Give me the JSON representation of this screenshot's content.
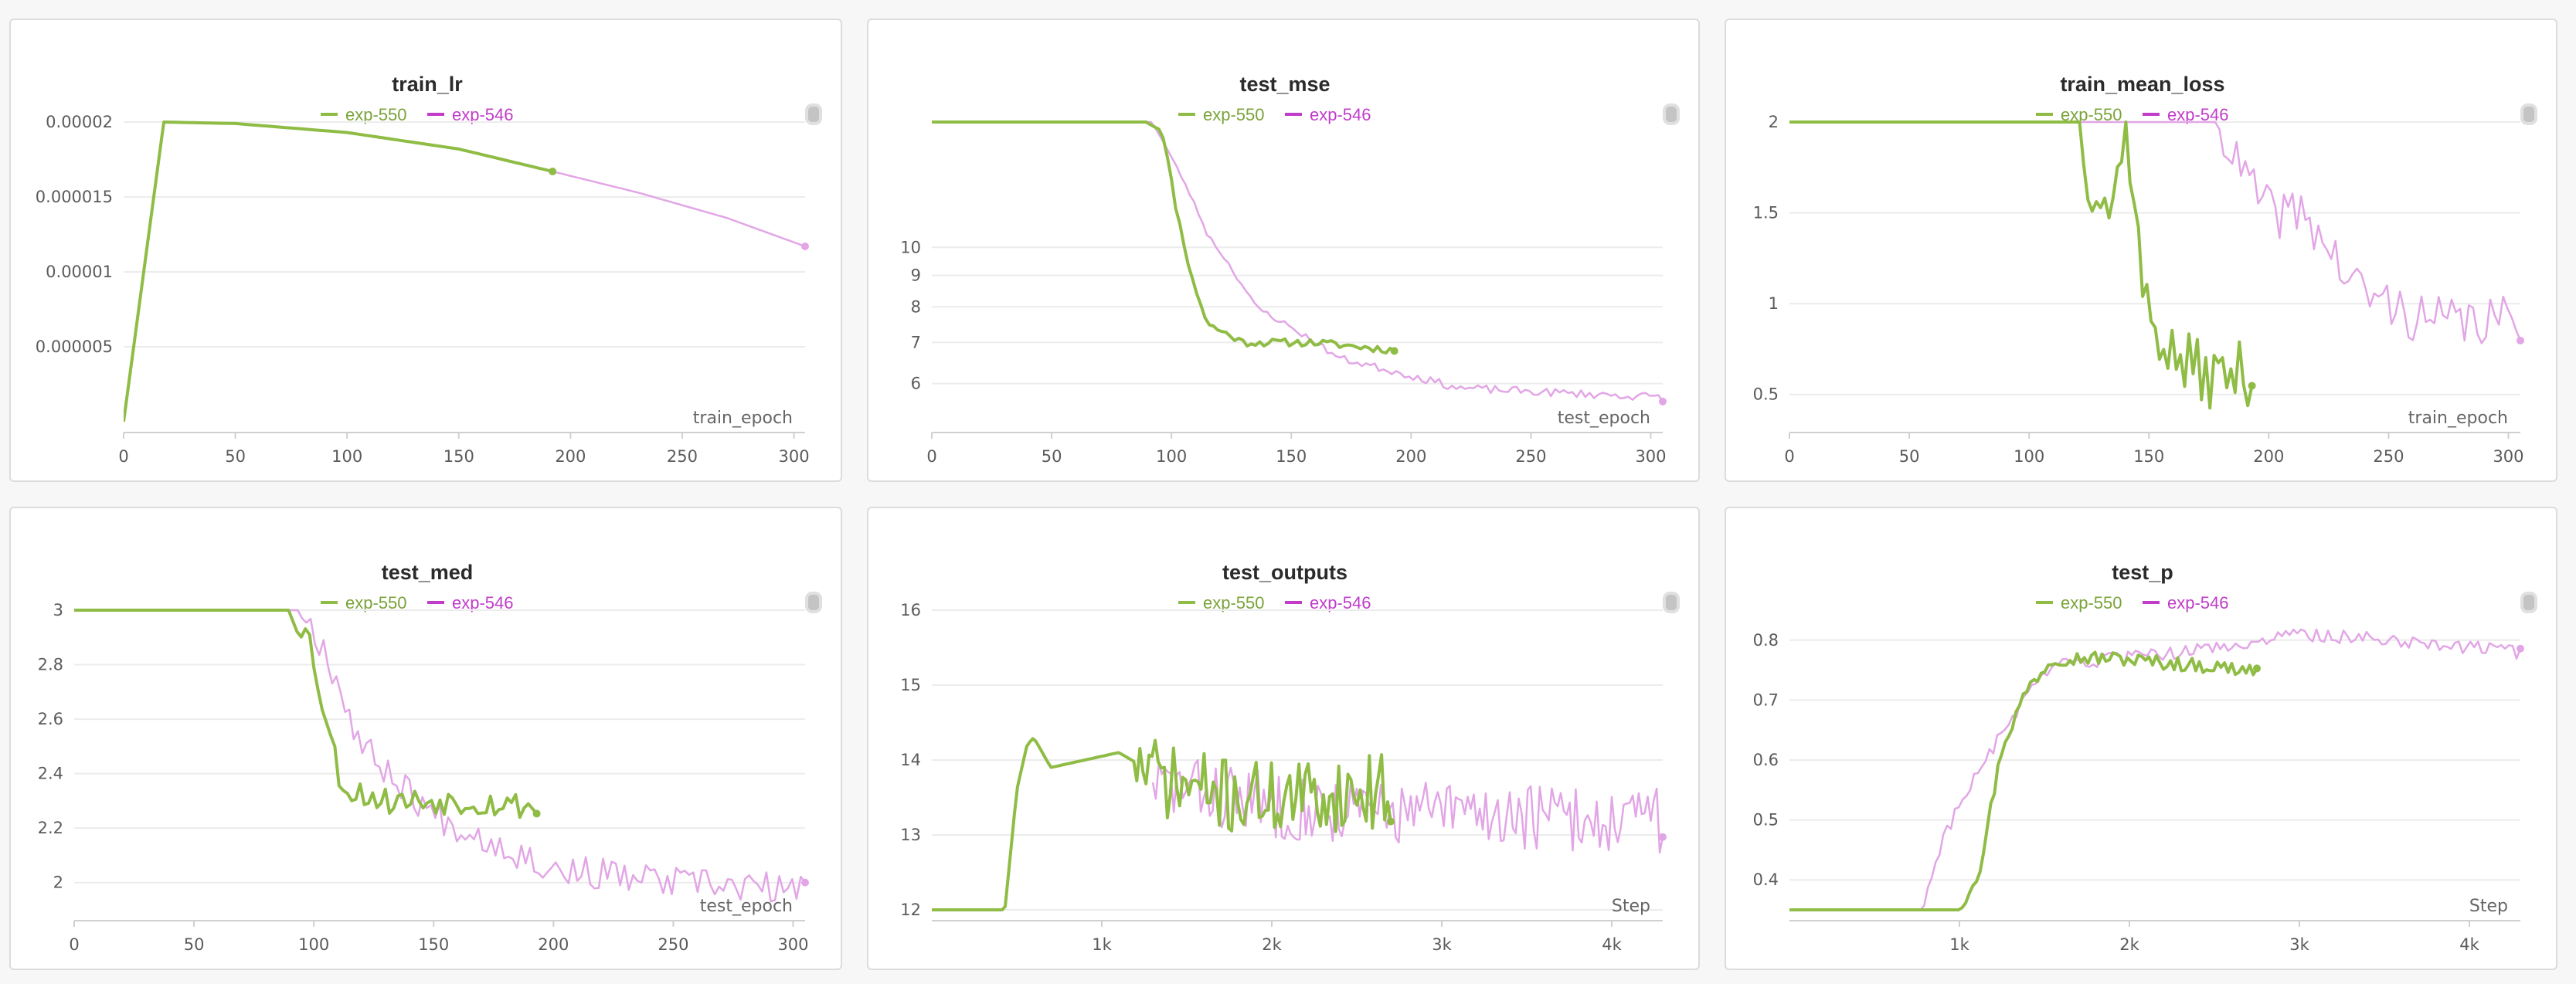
{
  "colors": {
    "exp_550": "#8fbc45",
    "exp_546": "#e2a6e6",
    "exp_546_text": "#c03cc9"
  },
  "legend": {
    "series_a": "exp-550",
    "series_b": "exp-546"
  },
  "chart_data": [
    {
      "title": "train_lr",
      "type": "line",
      "xlabel": "train_epoch",
      "ylabel": "",
      "xlim": [
        0,
        305
      ],
      "ylim": [
        0,
        2e-05
      ],
      "log": false,
      "xticks": [
        0,
        50,
        100,
        150,
        200,
        250,
        300
      ],
      "xtick_labels": [
        "0",
        "50",
        "100",
        "150",
        "200",
        "250",
        "300"
      ],
      "yticks": [
        5e-06,
        1e-05,
        1.5e-05,
        2e-05
      ],
      "ytick_labels": [
        "0.000005",
        "0.00001",
        "0.000015",
        "0.00002"
      ],
      "series": [
        {
          "name": "exp-550",
          "kind": "smooth",
          "points": [
            [
              0,
              0
            ],
            [
              18,
              2e-05
            ],
            [
              50,
              1.99e-05
            ],
            [
              100,
              1.93e-05
            ],
            [
              150,
              1.82e-05
            ],
            [
              192,
              1.67e-05
            ]
          ],
          "end_marker": true
        },
        {
          "name": "exp-546",
          "kind": "smooth",
          "points": [
            [
              192,
              1.67e-05
            ],
            [
              230,
              1.53e-05
            ],
            [
              270,
              1.36e-05
            ],
            [
              305,
              1.17e-05
            ]
          ],
          "end_marker": true
        }
      ]
    },
    {
      "title": "test_mse",
      "type": "line",
      "xlabel": "test_epoch",
      "ylabel": "",
      "xlim": [
        0,
        305
      ],
      "ylim": [
        5.2,
        16
      ],
      "log": true,
      "xticks": [
        0,
        50,
        100,
        150,
        200,
        250,
        300
      ],
      "xtick_labels": [
        "0",
        "50",
        "100",
        "150",
        "200",
        "250",
        "300"
      ],
      "yticks": [
        6,
        7,
        8,
        9,
        10
      ],
      "ytick_labels": [
        "6",
        "7",
        "8",
        "9",
        "10"
      ],
      "series": [
        {
          "name": "exp-550",
          "kind": "noisy",
          "seed": 11,
          "x_start": 0,
          "x_end": 193,
          "count": 110,
          "anchors": [
            [
              0,
              16
            ],
            [
              90,
              16
            ],
            [
              96,
              15.5
            ],
            [
              102,
              11.5
            ],
            [
              108,
              9.0
            ],
            [
              115,
              7.5
            ],
            [
              130,
              7.0
            ],
            [
              160,
              7.0
            ],
            [
              193,
              6.8
            ]
          ],
          "noise": 0.1,
          "end_marker": true
        },
        {
          "name": "exp-546",
          "kind": "noisy",
          "seed": 23,
          "x_start": 0,
          "x_end": 305,
          "count": 170,
          "anchors": [
            [
              0,
              16
            ],
            [
              92,
              16
            ],
            [
              100,
              14.0
            ],
            [
              115,
              10.5
            ],
            [
              135,
              8.0
            ],
            [
              170,
              6.6
            ],
            [
              220,
              5.9
            ],
            [
              260,
              5.8
            ],
            [
              305,
              5.7
            ]
          ],
          "noise": 0.09,
          "end_marker": true
        }
      ]
    },
    {
      "title": "train_mean_loss",
      "type": "line",
      "xlabel": "train_epoch",
      "ylabel": "",
      "xlim": [
        0,
        305
      ],
      "ylim": [
        0.35,
        2
      ],
      "log": false,
      "xticks": [
        0,
        50,
        100,
        150,
        200,
        250,
        300
      ],
      "xtick_labels": [
        "0",
        "50",
        "100",
        "150",
        "200",
        "250",
        "300"
      ],
      "yticks": [
        0.5,
        1,
        1.5,
        2
      ],
      "ytick_labels": [
        "0.5",
        "1",
        "1.5",
        "2"
      ],
      "series": [
        {
          "name": "exp-550",
          "kind": "noisy",
          "seed": 37,
          "x_start": 0,
          "x_end": 193,
          "count": 110,
          "anchors": [
            [
              0,
              2.3
            ],
            [
              118,
              2.3
            ],
            [
              125,
              1.7
            ],
            [
              135,
              1.5
            ],
            [
              140,
              2.1
            ],
            [
              148,
              1.0
            ],
            [
              160,
              0.7
            ],
            [
              175,
              0.6
            ],
            [
              193,
              0.62
            ]
          ],
          "noise": 0.18,
          "end_marker": true
        },
        {
          "name": "exp-546",
          "kind": "noisy",
          "seed": 41,
          "x_start": 0,
          "x_end": 305,
          "count": 170,
          "anchors": [
            [
              0,
              2.4
            ],
            [
              170,
              2.4
            ],
            [
              185,
              1.8
            ],
            [
              200,
              1.5
            ],
            [
              215,
              1.5
            ],
            [
              235,
              1.1
            ],
            [
              265,
              0.9
            ],
            [
              305,
              0.9
            ]
          ],
          "noise": 0.14,
          "end_marker": true
        }
      ]
    },
    {
      "title": "test_med",
      "type": "line",
      "xlabel": "test_epoch",
      "ylabel": "",
      "xlim": [
        0,
        305
      ],
      "ylim": [
        1.9,
        3
      ],
      "log": false,
      "xticks": [
        0,
        50,
        100,
        150,
        200,
        250,
        300
      ],
      "xtick_labels": [
        "0",
        "50",
        "100",
        "150",
        "200",
        "250",
        "300"
      ],
      "yticks": [
        2,
        2.2,
        2.4,
        2.6,
        2.8,
        3
      ],
      "ytick_labels": [
        "2",
        "2.2",
        "2.4",
        "2.6",
        "2.8",
        "3"
      ],
      "series": [
        {
          "name": "exp-550",
          "kind": "noisy",
          "seed": 53,
          "x_start": 0,
          "x_end": 193,
          "count": 110,
          "anchors": [
            [
              0,
              3
            ],
            [
              90,
              3
            ],
            [
              98,
              2.9
            ],
            [
              105,
              2.6
            ],
            [
              112,
              2.35
            ],
            [
              130,
              2.3
            ],
            [
              160,
              2.3
            ],
            [
              193,
              2.28
            ]
          ],
          "noise": 0.05,
          "end_marker": true
        },
        {
          "name": "exp-546",
          "kind": "noisy",
          "seed": 67,
          "x_start": 0,
          "x_end": 305,
          "count": 170,
          "anchors": [
            [
              0,
              3
            ],
            [
              95,
              3
            ],
            [
              105,
              2.85
            ],
            [
              120,
              2.5
            ],
            [
              150,
              2.25
            ],
            [
              200,
              2.05
            ],
            [
              250,
              2.0
            ],
            [
              305,
              1.97
            ]
          ],
          "noise": 0.06,
          "end_marker": true
        }
      ]
    },
    {
      "title": "test_outputs",
      "type": "line",
      "xlabel": "Step",
      "ylabel": "",
      "xlim": [
        0,
        4300
      ],
      "ylim": [
        12,
        16
      ],
      "log": false,
      "xticks": [
        1000,
        2000,
        3000,
        4000
      ],
      "xtick_labels": [
        "1k",
        "2k",
        "3k",
        "4k"
      ],
      "yticks": [
        12,
        13,
        14,
        15,
        16
      ],
      "ytick_labels": [
        "12",
        "13",
        "14",
        "15",
        "16"
      ],
      "series": [
        {
          "name": "exp-550",
          "kind": "noisy",
          "seed": 71,
          "x_start": 0,
          "x_end": 2700,
          "count": 150,
          "anchors": [
            [
              0,
              12
            ],
            [
              430,
              12
            ],
            [
              500,
              13.6
            ],
            [
              560,
              14.2
            ],
            [
              600,
              14.3
            ],
            [
              700,
              13.9
            ],
            [
              900,
              14.0
            ],
            [
              1100,
              14.1
            ],
            [
              1400,
              13.7
            ],
            [
              1800,
              13.5
            ],
            [
              2200,
              13.5
            ],
            [
              2700,
              13.6
            ]
          ],
          "noise_from": 1200,
          "noise": 0.5,
          "end_marker": true
        },
        {
          "name": "exp-546",
          "kind": "noisy",
          "seed": 83,
          "x_start": 1300,
          "x_end": 4300,
          "count": 170,
          "anchors": [
            [
              1300,
              13.7
            ],
            [
              2000,
              13.4
            ],
            [
              2600,
              13.3
            ],
            [
              3200,
              13.3
            ],
            [
              3800,
              13.2
            ],
            [
              4300,
              13.2
            ]
          ],
          "noise": 0.45,
          "end_marker": true
        }
      ]
    },
    {
      "title": "test_p",
      "type": "line",
      "xlabel": "Step",
      "ylabel": "",
      "xlim": [
        0,
        4300
      ],
      "ylim": [
        0.35,
        0.85
      ],
      "log": false,
      "xticks": [
        1000,
        2000,
        3000,
        4000
      ],
      "xtick_labels": [
        "1k",
        "2k",
        "3k",
        "4k"
      ],
      "yticks": [
        0.4,
        0.5,
        0.6,
        0.7,
        0.8
      ],
      "ytick_labels": [
        "0.4",
        "0.5",
        "0.6",
        "0.7",
        "0.8"
      ],
      "series": [
        {
          "name": "exp-550",
          "kind": "noisy",
          "seed": 97,
          "x_start": 0,
          "x_end": 2750,
          "count": 130,
          "anchors": [
            [
              0,
              0.35
            ],
            [
              1000,
              0.35
            ],
            [
              1120,
              0.42
            ],
            [
              1250,
              0.62
            ],
            [
              1400,
              0.72
            ],
            [
              1550,
              0.77
            ],
            [
              1900,
              0.77
            ],
            [
              2300,
              0.76
            ],
            [
              2750,
              0.75
            ]
          ],
          "noise": 0.012,
          "end_marker": true
        },
        {
          "name": "exp-546",
          "kind": "noisy",
          "seed": 103,
          "x_start": 0,
          "x_end": 4300,
          "count": 190,
          "anchors": [
            [
              0,
              0.35
            ],
            [
              780,
              0.35
            ],
            [
              900,
              0.47
            ],
            [
              1050,
              0.55
            ],
            [
              1200,
              0.62
            ],
            [
              1400,
              0.71
            ],
            [
              1600,
              0.76
            ],
            [
              2000,
              0.77
            ],
            [
              2600,
              0.79
            ],
            [
              3000,
              0.81
            ],
            [
              3600,
              0.8
            ],
            [
              4300,
              0.78
            ]
          ],
          "noise": 0.012,
          "end_marker": true
        }
      ]
    }
  ]
}
